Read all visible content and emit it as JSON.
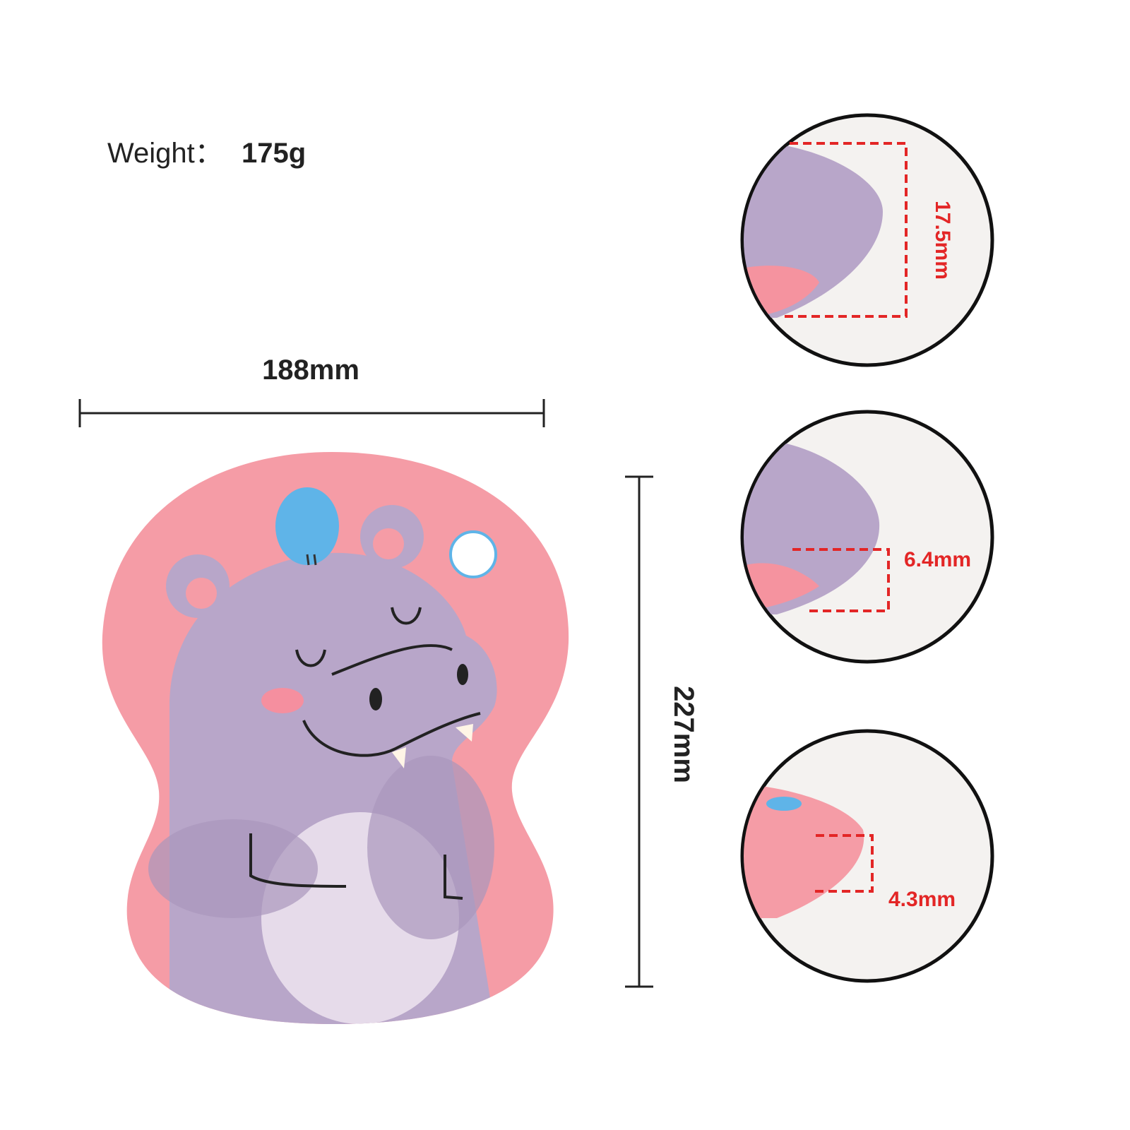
{
  "weight": {
    "label": "Weight：",
    "value": "175g"
  },
  "dimensions": {
    "width": "188mm",
    "height": "227mm"
  },
  "details": [
    {
      "label": "17.5mm"
    },
    {
      "label": "6.4mm"
    },
    {
      "label": "4.3mm"
    }
  ]
}
